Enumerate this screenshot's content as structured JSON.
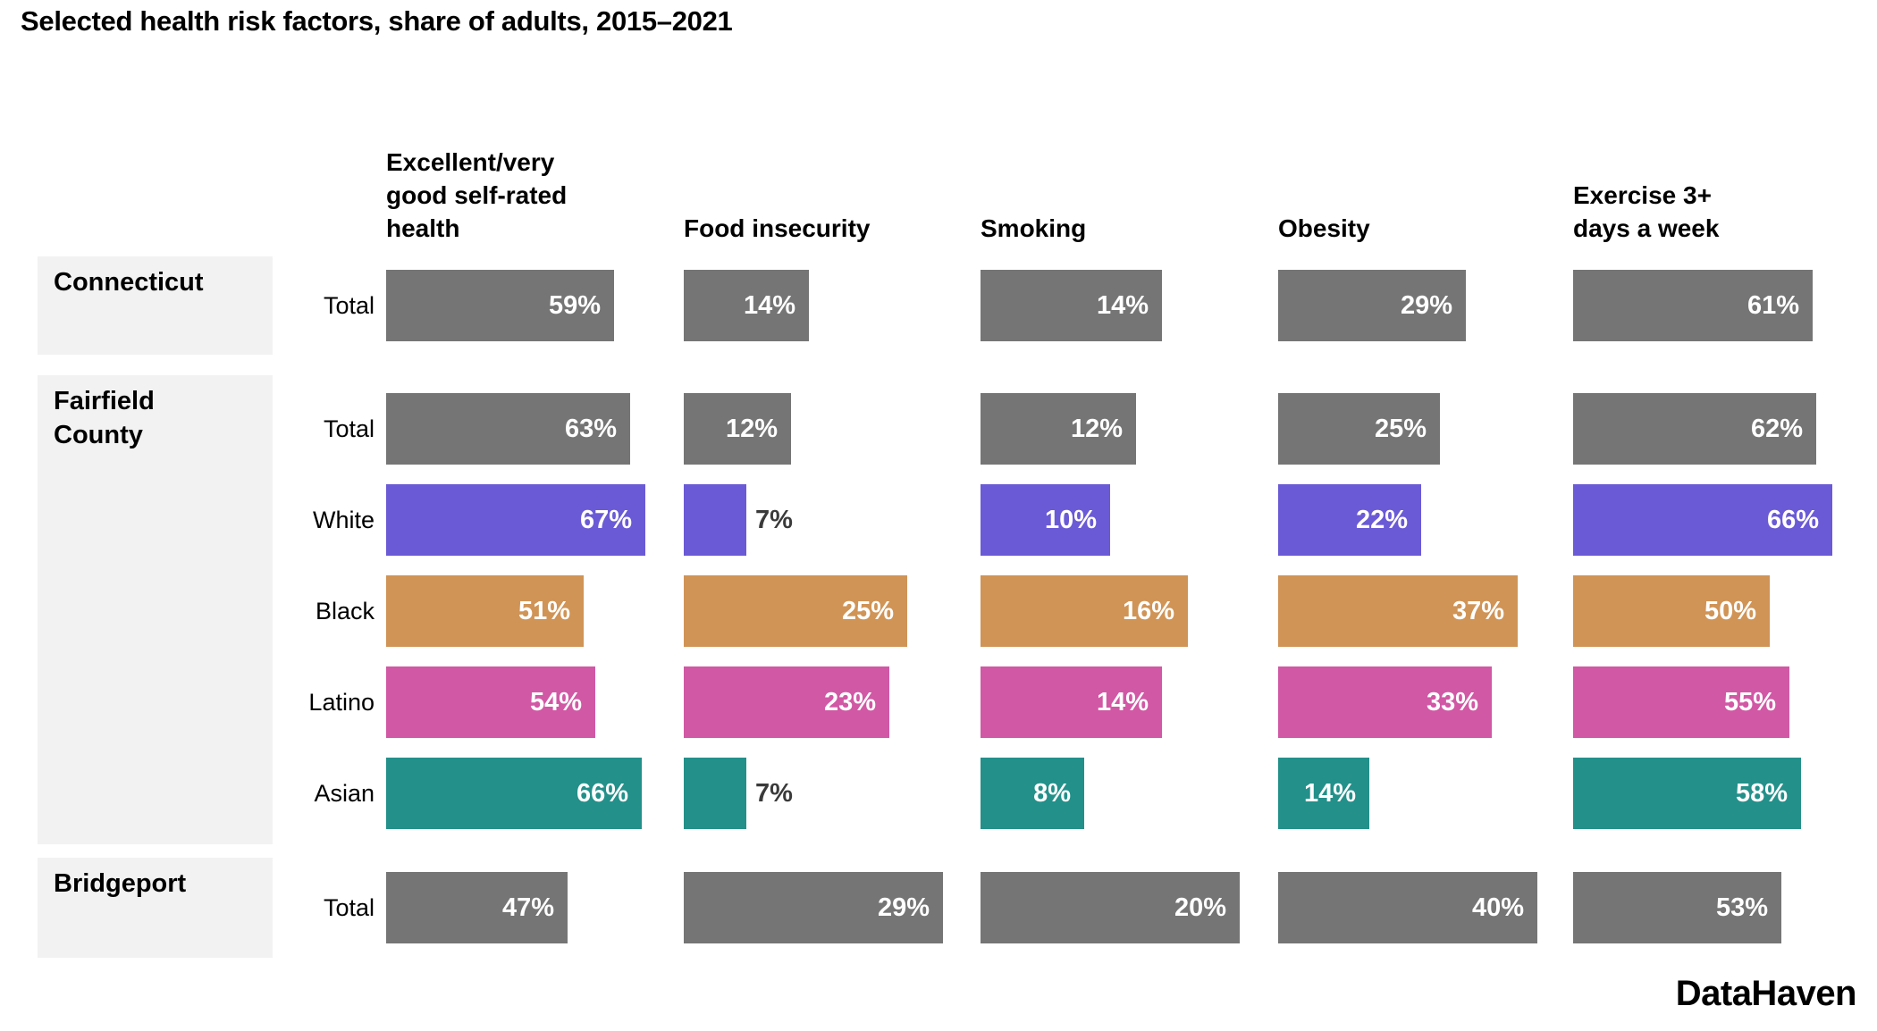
{
  "title": "Selected health risk factors, share of adults, 2015–2021",
  "logo": "DataHaven",
  "colors": {
    "total": "#757575",
    "white": "#6a5ad6",
    "black": "#d09456",
    "latino": "#d158a5",
    "asian": "#23908a",
    "group_box_bg": "#f2f2f2",
    "value_label_inside": "#ffffff",
    "value_label_outside": "#3a3a3a"
  },
  "chart_data": {
    "type": "bar",
    "unit": "%",
    "orientation": "horizontal",
    "grid": false,
    "legend": false,
    "title": "Selected health risk factors, share of adults, 2015–2021",
    "columns": [
      {
        "label": "Excellent/very good self-rated health",
        "lines": [
          "Excellent/very",
          "good self-rated",
          "health"
        ],
        "scale_max": 67
      },
      {
        "label": "Food insecurity",
        "lines": [
          "Food insecurity"
        ],
        "scale_max": 29
      },
      {
        "label": "Smoking",
        "lines": [
          "Smoking"
        ],
        "scale_max": 20
      },
      {
        "label": "Obesity",
        "lines": [
          "Obesity"
        ],
        "scale_max": 40
      },
      {
        "label": "Exercise 3+ days a week",
        "lines": [
          "Exercise 3+",
          "days a week"
        ],
        "scale_max": 66
      }
    ],
    "groups": [
      {
        "label": "Connecticut",
        "rows": [
          {
            "label": "Total",
            "color_key": "total",
            "values": [
              59,
              14,
              14,
              29,
              61
            ]
          }
        ]
      },
      {
        "label": "Fairfield County",
        "rows": [
          {
            "label": "Total",
            "color_key": "total",
            "values": [
              63,
              12,
              12,
              25,
              62
            ]
          },
          {
            "label": "White",
            "color_key": "white",
            "values": [
              67,
              7,
              10,
              22,
              66
            ]
          },
          {
            "label": "Black",
            "color_key": "black",
            "values": [
              51,
              25,
              16,
              37,
              50
            ]
          },
          {
            "label": "Latino",
            "color_key": "latino",
            "values": [
              54,
              23,
              14,
              33,
              55
            ]
          },
          {
            "label": "Asian",
            "color_key": "asian",
            "values": [
              66,
              7,
              8,
              14,
              58
            ]
          }
        ]
      },
      {
        "label": "Bridgeport",
        "rows": [
          {
            "label": "Total",
            "color_key": "total",
            "values": [
              47,
              29,
              20,
              40,
              53
            ]
          }
        ]
      }
    ]
  }
}
